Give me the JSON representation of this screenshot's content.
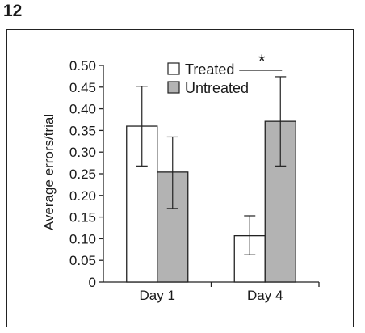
{
  "figure": {
    "panel_label": "12"
  },
  "chart_data": {
    "type": "bar",
    "categories": [
      "Day 1",
      "Day 4"
    ],
    "series": [
      {
        "name": "Treated",
        "values": [
          0.36,
          0.107
        ],
        "error_low": [
          0.268,
          0.063
        ],
        "error_high": [
          0.452,
          0.153
        ],
        "color": "#ffffff"
      },
      {
        "name": "Untreated",
        "values": [
          0.254,
          0.371
        ],
        "error_low": [
          0.17,
          0.268
        ],
        "error_high": [
          0.335,
          0.474
        ],
        "color": "#b3b3b3"
      }
    ],
    "ylabel": "Average errors/trial",
    "xlabel": "",
    "ylim": [
      0,
      0.5
    ],
    "yticks": [
      "0",
      "0.05",
      "0.10",
      "0.15",
      "0.20",
      "0.25",
      "0.30",
      "0.35",
      "0.40",
      "0.45",
      "0.50"
    ],
    "legend_position": "top-center",
    "grid": false,
    "annotations": [
      {
        "text": "*",
        "category": "Day 4"
      }
    ]
  }
}
